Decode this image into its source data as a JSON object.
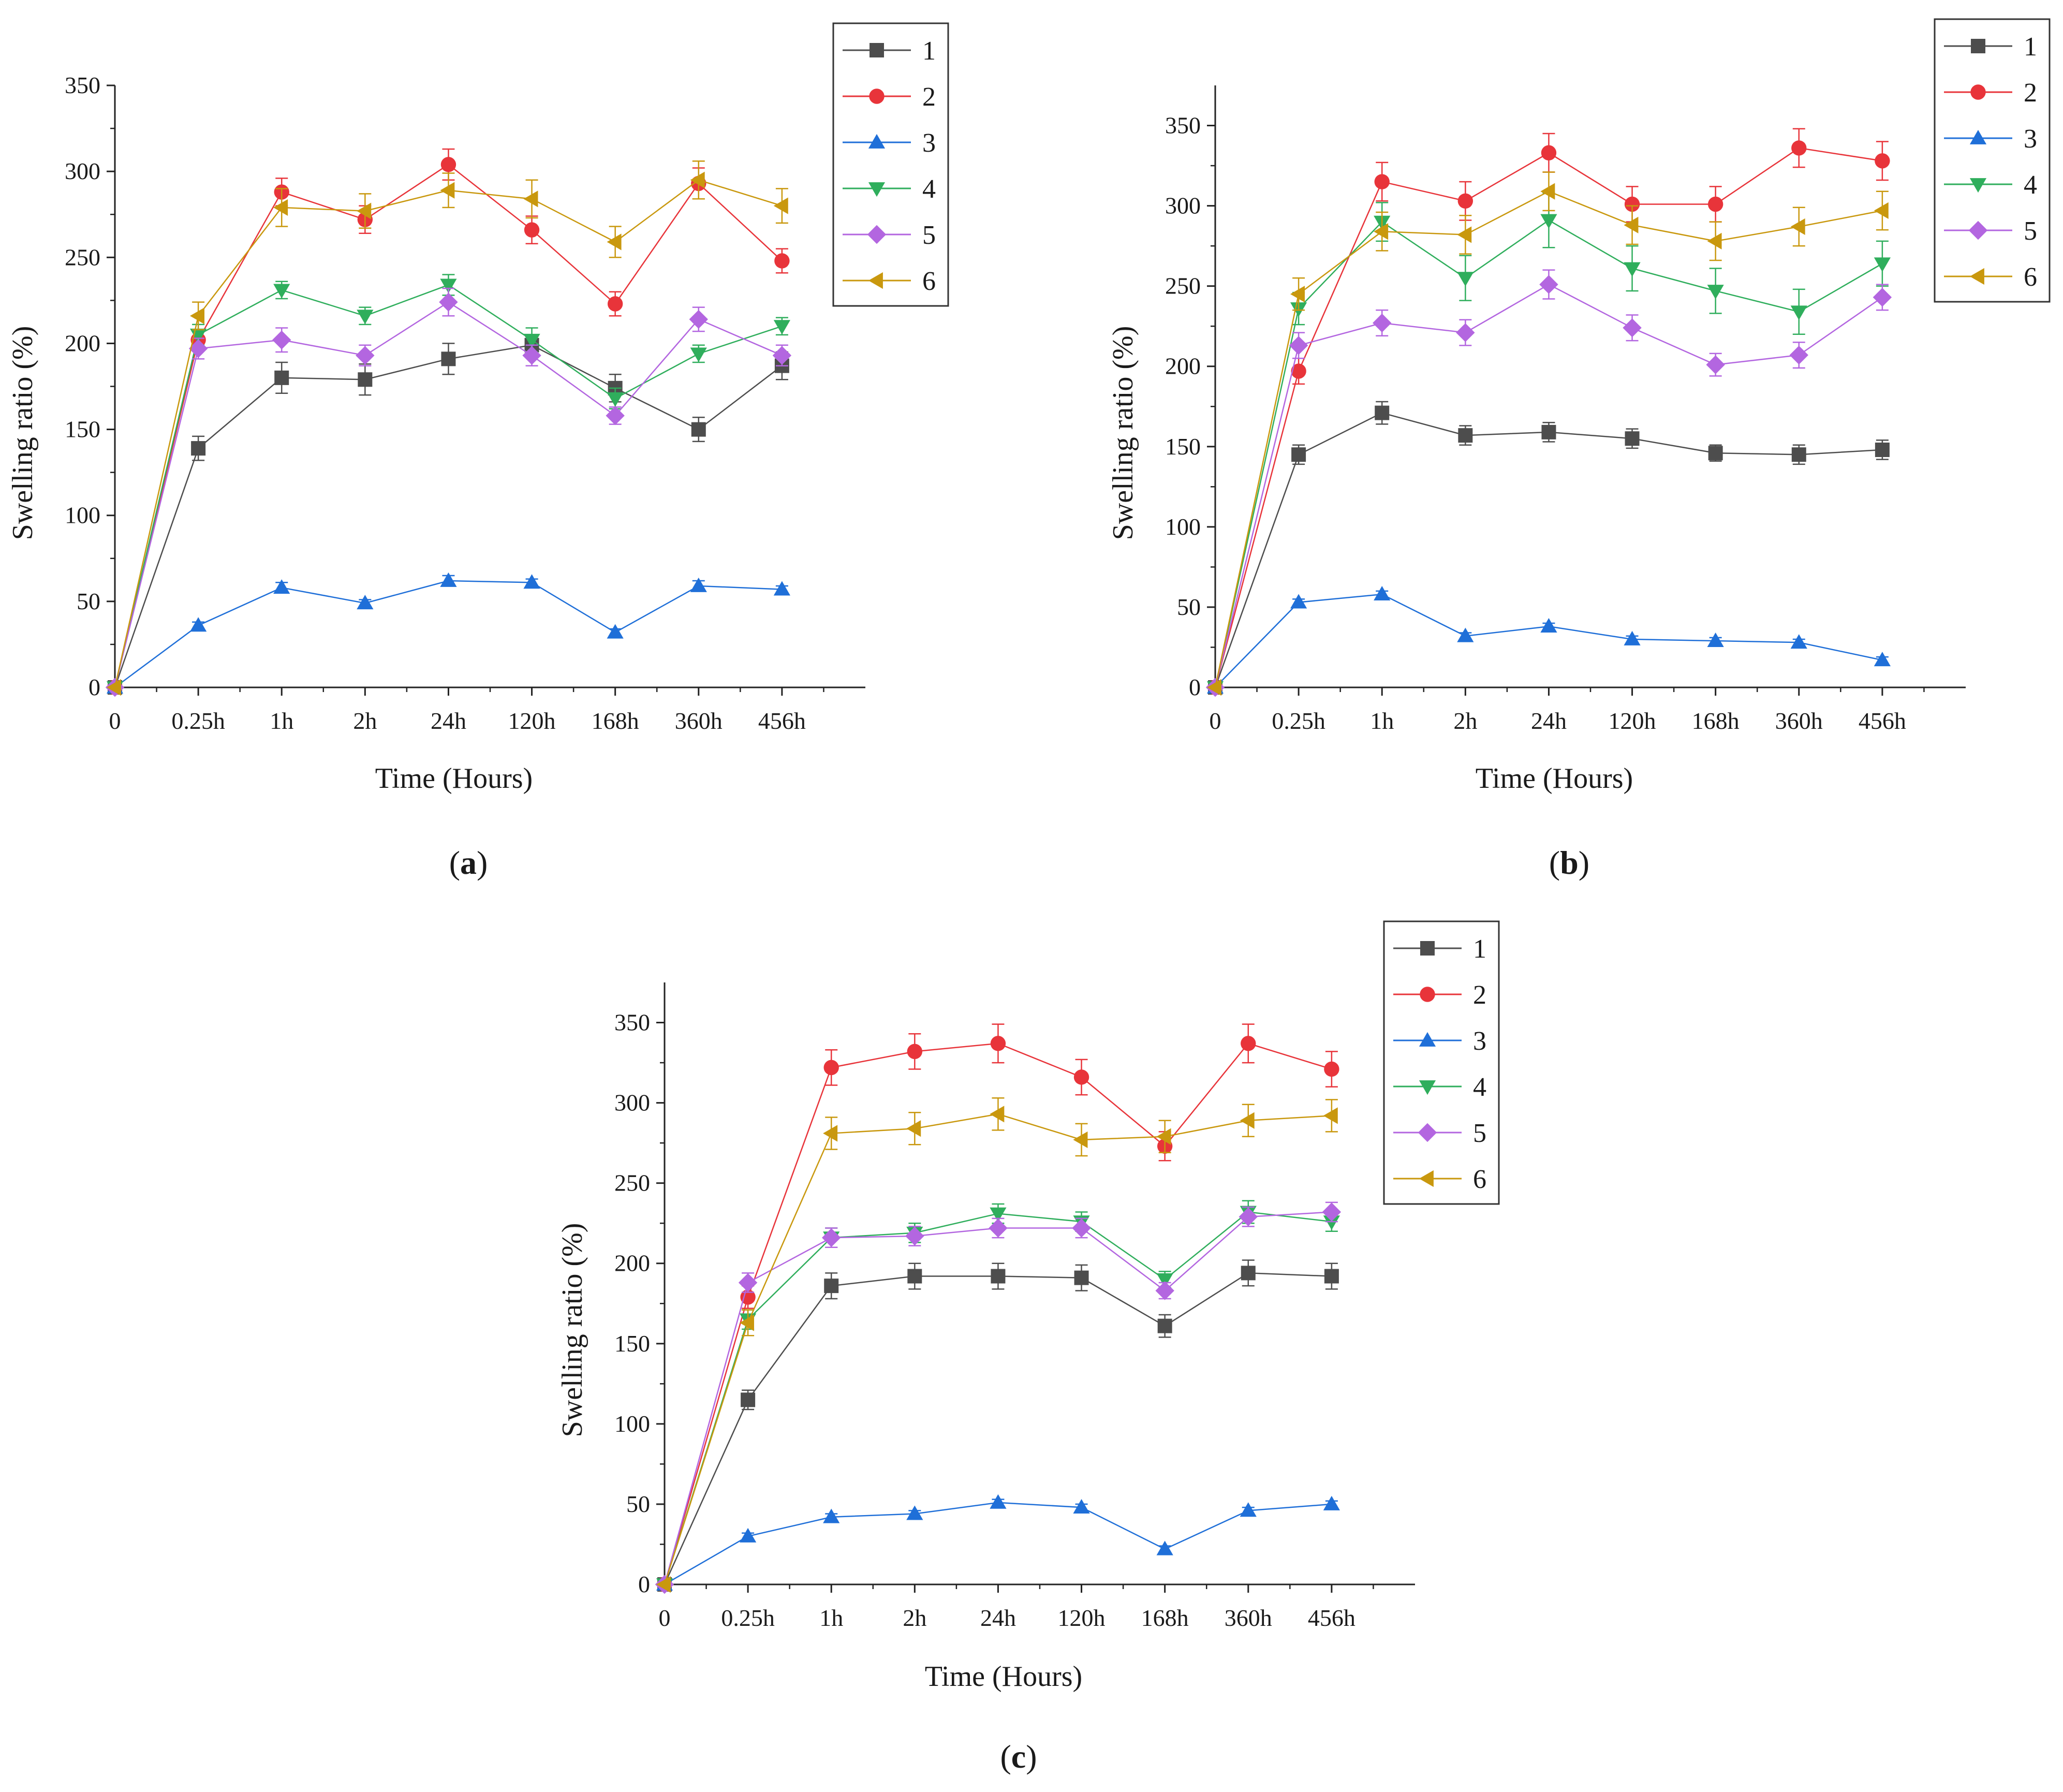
{
  "colors": {
    "s1": "#4d4d4d",
    "s2": "#e8343a",
    "s3": "#1f6fd8",
    "s4": "#2fae5c",
    "s5": "#b366e0",
    "s6": "#c9980e",
    "axis": "#222222"
  },
  "chart_data": [
    {
      "type": "line",
      "panel": "a",
      "caption_open": "(",
      "caption_letter": "a",
      "caption_close": ")",
      "xlabel": "Time (Hours)",
      "ylabel": "Swelling ratio (%)",
      "categories": [
        "0",
        "0.25h",
        "1h",
        "2h",
        "24h",
        "120h",
        "168h",
        "360h",
        "456h"
      ],
      "ylim": [
        0,
        350
      ],
      "yticks": [
        "0",
        "50",
        "100",
        "150",
        "200",
        "250",
        "300",
        "350"
      ],
      "legend_position": "top-right",
      "series": [
        {
          "name": "1",
          "marker": "square",
          "values": [
            0,
            139,
            180,
            179,
            191,
            199,
            174,
            150,
            187
          ],
          "errors": [
            0,
            7,
            9,
            9,
            9,
            6,
            8,
            7,
            8
          ]
        },
        {
          "name": "2",
          "marker": "circle",
          "values": [
            0,
            202,
            288,
            272,
            304,
            266,
            223,
            293,
            248
          ],
          "errors": [
            0,
            6,
            8,
            8,
            9,
            8,
            7,
            9,
            7
          ]
        },
        {
          "name": "3",
          "marker": "triangle-up",
          "values": [
            0,
            36,
            58,
            49,
            62,
            61,
            32,
            59,
            57
          ],
          "errors": [
            0,
            2,
            3,
            2,
            3,
            2,
            2,
            3,
            2
          ]
        },
        {
          "name": "4",
          "marker": "triangle-down",
          "values": [
            0,
            205,
            231,
            216,
            234,
            202,
            168,
            194,
            210
          ],
          "errors": [
            0,
            6,
            5,
            5,
            6,
            7,
            6,
            5,
            5
          ]
        },
        {
          "name": "5",
          "marker": "diamond",
          "values": [
            0,
            197,
            202,
            193,
            224,
            193,
            158,
            214,
            193
          ],
          "errors": [
            0,
            6,
            7,
            6,
            8,
            6,
            5,
            7,
            6
          ]
        },
        {
          "name": "6",
          "marker": "triangle-left",
          "values": [
            0,
            216,
            279,
            277,
            289,
            284,
            259,
            295,
            280
          ],
          "errors": [
            0,
            8,
            11,
            10,
            10,
            11,
            9,
            11,
            10
          ]
        }
      ]
    },
    {
      "type": "line",
      "panel": "b",
      "caption_open": "(",
      "caption_letter": "b",
      "caption_close": ")",
      "xlabel": "Time (Hours)",
      "ylabel": "Swelling ratio (%)",
      "categories": [
        "0",
        "0.25h",
        "1h",
        "2h",
        "24h",
        "120h",
        "168h",
        "360h",
        "456h"
      ],
      "ylim": [
        0,
        375
      ],
      "yticks": [
        "0",
        "50",
        "100",
        "150",
        "200",
        "250",
        "300",
        "350"
      ],
      "legend_position": "top-right",
      "series": [
        {
          "name": "1",
          "marker": "square",
          "values": [
            0,
            145,
            171,
            157,
            159,
            155,
            146,
            145,
            148
          ],
          "errors": [
            0,
            6,
            7,
            6,
            6,
            6,
            5,
            6,
            6
          ]
        },
        {
          "name": "2",
          "marker": "circle",
          "values": [
            0,
            197,
            315,
            303,
            333,
            301,
            301,
            336,
            328
          ],
          "errors": [
            0,
            8,
            12,
            12,
            12,
            11,
            11,
            12,
            12
          ]
        },
        {
          "name": "3",
          "marker": "triangle-up",
          "values": [
            0,
            53,
            58,
            32,
            38,
            30,
            29,
            28,
            17
          ],
          "errors": [
            0,
            2,
            2,
            2,
            2,
            2,
            2,
            2,
            2
          ]
        },
        {
          "name": "4",
          "marker": "triangle-down",
          "values": [
            0,
            236,
            290,
            255,
            291,
            261,
            247,
            234,
            264
          ],
          "errors": [
            0,
            10,
            12,
            14,
            17,
            14,
            14,
            14,
            14
          ]
        },
        {
          "name": "5",
          "marker": "diamond",
          "values": [
            0,
            213,
            227,
            221,
            251,
            224,
            201,
            207,
            243
          ],
          "errors": [
            0,
            8,
            8,
            8,
            9,
            8,
            7,
            8,
            8
          ]
        },
        {
          "name": "6",
          "marker": "triangle-left",
          "values": [
            0,
            245,
            284,
            282,
            309,
            288,
            278,
            287,
            297
          ],
          "errors": [
            0,
            10,
            12,
            12,
            12,
            12,
            12,
            12,
            12
          ]
        }
      ]
    },
    {
      "type": "line",
      "panel": "c",
      "caption_open": "(",
      "caption_letter": "c",
      "caption_close": ")",
      "xlabel": "Time (Hours)",
      "ylabel": "Swelling ratio (%)",
      "categories": [
        "0",
        "0.25h",
        "1h",
        "2h",
        "24h",
        "120h",
        "168h",
        "360h",
        "456h"
      ],
      "ylim": [
        0,
        375
      ],
      "yticks": [
        "0",
        "50",
        "100",
        "150",
        "200",
        "250",
        "300",
        "350"
      ],
      "legend_position": "top-right",
      "series": [
        {
          "name": "1",
          "marker": "square",
          "values": [
            0,
            115,
            186,
            192,
            192,
            191,
            161,
            194,
            192
          ],
          "errors": [
            0,
            6,
            8,
            8,
            8,
            8,
            7,
            8,
            8
          ]
        },
        {
          "name": "2",
          "marker": "circle",
          "values": [
            0,
            179,
            322,
            332,
            337,
            316,
            273,
            337,
            321
          ],
          "errors": [
            0,
            7,
            11,
            11,
            12,
            11,
            9,
            12,
            11
          ]
        },
        {
          "name": "3",
          "marker": "triangle-up",
          "values": [
            0,
            30,
            42,
            44,
            51,
            48,
            22,
            46,
            50
          ],
          "errors": [
            0,
            2,
            2,
            2,
            2,
            2,
            2,
            2,
            2
          ]
        },
        {
          "name": "4",
          "marker": "triangle-down",
          "values": [
            0,
            165,
            216,
            219,
            231,
            226,
            190,
            232,
            226
          ],
          "errors": [
            0,
            6,
            6,
            6,
            6,
            6,
            5,
            7,
            6
          ]
        },
        {
          "name": "5",
          "marker": "diamond",
          "values": [
            0,
            188,
            216,
            217,
            222,
            222,
            183,
            229,
            232
          ],
          "errors": [
            0,
            6,
            6,
            6,
            6,
            6,
            5,
            6,
            6
          ]
        },
        {
          "name": "6",
          "marker": "triangle-left",
          "values": [
            0,
            163,
            281,
            284,
            293,
            277,
            279,
            289,
            292
          ],
          "errors": [
            0,
            8,
            10,
            10,
            10,
            10,
            10,
            10,
            10
          ]
        }
      ]
    }
  ]
}
